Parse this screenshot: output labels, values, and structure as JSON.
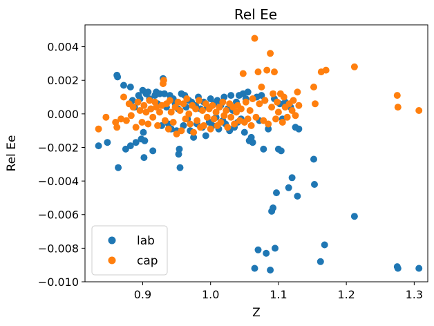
{
  "chart_data": {
    "type": "scatter",
    "title": "Rel Ee",
    "xlabel": "Z",
    "ylabel": "Rel Ee",
    "xlim": [
      0.815,
      1.32
    ],
    "ylim": [
      -0.01,
      0.0053
    ],
    "xticks": [
      {
        "value": 0.9,
        "label": "0.9"
      },
      {
        "value": 1.0,
        "label": "1.0"
      },
      {
        "value": 1.1,
        "label": "1.1"
      },
      {
        "value": 1.2,
        "label": "1.2"
      },
      {
        "value": 1.3,
        "label": "1.3"
      }
    ],
    "yticks": [
      {
        "value": 0.004,
        "label": "0.004"
      },
      {
        "value": 0.002,
        "label": "0.002"
      },
      {
        "value": 0.0,
        "label": "0.000"
      },
      {
        "value": -0.002,
        "label": "−0.002"
      },
      {
        "value": -0.004,
        "label": "−0.004"
      },
      {
        "value": -0.006,
        "label": "−0.006"
      },
      {
        "value": -0.008,
        "label": "−0.008"
      },
      {
        "value": -0.01,
        "label": "−0.010"
      }
    ],
    "grid": false,
    "legend_position": "lower-left",
    "series": [
      {
        "name": "lab",
        "color": "#1f77b4",
        "points": [
          [
            0.835,
            -0.0019
          ],
          [
            0.848,
            -0.0017
          ],
          [
            0.862,
            0.0023
          ],
          [
            0.863,
            0.0022
          ],
          [
            0.864,
            -0.0032
          ],
          [
            0.872,
            0.0017
          ],
          [
            0.875,
            -0.0021
          ],
          [
            0.882,
            0.0016
          ],
          [
            0.882,
            -0.0019
          ],
          [
            0.885,
            0.0008
          ],
          [
            0.888,
            0.0004
          ],
          [
            0.89,
            -0.0017
          ],
          [
            0.894,
            0.0011
          ],
          [
            0.896,
            0.0009
          ],
          [
            0.898,
            -0.0015
          ],
          [
            0.9,
            0.0014
          ],
          [
            0.901,
            -0.0011
          ],
          [
            0.902,
            -0.0026
          ],
          [
            0.903,
            -0.0016
          ],
          [
            0.905,
            0.0012
          ],
          [
            0.908,
            0.0013
          ],
          [
            0.91,
            0.0009
          ],
          [
            0.912,
            0.0003
          ],
          [
            0.915,
            -0.0022
          ],
          [
            0.918,
            0.0011
          ],
          [
            0.92,
            0.0013
          ],
          [
            0.922,
            0.0006
          ],
          [
            0.925,
            0.0012
          ],
          [
            0.928,
            -0.0007
          ],
          [
            0.93,
            0.0021
          ],
          [
            0.932,
            0.0012
          ],
          [
            0.935,
            0.0004
          ],
          [
            0.938,
            -0.0006
          ],
          [
            0.94,
            0.0011
          ],
          [
            0.942,
            -0.0009
          ],
          [
            0.945,
            0.0009
          ],
          [
            0.948,
            0.0006
          ],
          [
            0.95,
            -0.001
          ],
          [
            0.952,
            0.0003
          ],
          [
            0.953,
            -0.0024
          ],
          [
            0.954,
            -0.0021
          ],
          [
            0.955,
            -0.0032
          ],
          [
            0.957,
            0.0012
          ],
          [
            0.96,
            -0.0007
          ],
          [
            0.962,
            0.0011
          ],
          [
            0.964,
            0.0004
          ],
          [
            0.966,
            -0.0003
          ],
          [
            0.968,
            0.0008
          ],
          [
            0.97,
            -0.001
          ],
          [
            0.972,
            0.0007
          ],
          [
            0.975,
            -0.0014
          ],
          [
            0.978,
            0.0005
          ],
          [
            0.98,
            -0.0006
          ],
          [
            0.982,
            0.001
          ],
          [
            0.985,
            0.0003
          ],
          [
            0.988,
            -0.0008
          ],
          [
            0.99,
            0.0007
          ],
          [
            0.993,
            -0.0013
          ],
          [
            0.995,
            0.0004
          ],
          [
            0.998,
            -0.0005
          ],
          [
            1.0,
            0.0009
          ],
          [
            1.003,
            -0.0007
          ],
          [
            1.005,
            0.0006
          ],
          [
            1.008,
            -0.0002
          ],
          [
            1.01,
            0.0008
          ],
          [
            1.012,
            -0.0009
          ],
          [
            1.015,
            0.0005
          ],
          [
            1.018,
            -0.0004
          ],
          [
            1.02,
            0.001
          ],
          [
            1.022,
            -0.0006
          ],
          [
            1.025,
            0.0003
          ],
          [
            1.028,
            -0.001
          ],
          [
            1.03,
            0.0011
          ],
          [
            1.033,
            0.0002
          ],
          [
            1.035,
            -0.0008
          ],
          [
            1.038,
            0.0007
          ],
          [
            1.04,
            -0.0005
          ],
          [
            1.042,
            0.0011
          ],
          [
            1.045,
            -0.0003
          ],
          [
            1.048,
            0.0012
          ],
          [
            1.05,
            -0.0011
          ],
          [
            1.052,
            0.0009
          ],
          [
            1.055,
            0.0013
          ],
          [
            1.057,
            -0.0016
          ],
          [
            1.06,
            -0.0014
          ],
          [
            1.062,
            -0.0017
          ],
          [
            1.065,
            -0.0092
          ],
          [
            1.068,
            0.001
          ],
          [
            1.07,
            -0.0081
          ],
          [
            1.072,
            -0.0004
          ],
          [
            1.075,
            0.0011
          ],
          [
            1.078,
            -0.0021
          ],
          [
            1.08,
            0.0008
          ],
          [
            1.082,
            -0.0083
          ],
          [
            1.085,
            -0.0009
          ],
          [
            1.088,
            -0.0093
          ],
          [
            1.09,
            -0.0058
          ],
          [
            1.092,
            -0.0056
          ],
          [
            1.094,
            0.0009
          ],
          [
            1.095,
            -0.008
          ],
          [
            1.097,
            -0.0047
          ],
          [
            1.1,
            -0.0021
          ],
          [
            1.102,
            0.0006
          ],
          [
            1.104,
            -0.0022
          ],
          [
            1.106,
            -0.0003
          ],
          [
            1.11,
            0.0007
          ],
          [
            1.115,
            -0.0044
          ],
          [
            1.118,
            0.0004
          ],
          [
            1.12,
            -0.0038
          ],
          [
            1.125,
            -0.0008
          ],
          [
            1.128,
            -0.0049
          ],
          [
            1.13,
            -0.0009
          ],
          [
            1.152,
            -0.0027
          ],
          [
            1.153,
            -0.0042
          ],
          [
            1.162,
            -0.0088
          ],
          [
            1.168,
            -0.0078
          ],
          [
            1.212,
            -0.0061
          ],
          [
            1.275,
            -0.0091
          ],
          [
            1.276,
            -0.0092
          ],
          [
            1.307,
            -0.0092
          ]
        ]
      },
      {
        "name": "cap",
        "color": "#ff7f0e",
        "points": [
          [
            0.835,
            -0.0009
          ],
          [
            0.846,
            -0.0002
          ],
          [
            0.86,
            -0.0005
          ],
          [
            0.862,
            -0.0008
          ],
          [
            0.868,
            -0.0003
          ],
          [
            0.872,
            0.001
          ],
          [
            0.876,
            -0.0004
          ],
          [
            0.88,
            0.0006
          ],
          [
            0.883,
            -0.0001
          ],
          [
            0.886,
            0.0004
          ],
          [
            0.89,
            -0.0008
          ],
          [
            0.893,
            0.0007
          ],
          [
            0.896,
            0.0002
          ],
          [
            0.899,
            -0.0005
          ],
          [
            0.902,
            0.0005
          ],
          [
            0.905,
            0.0001
          ],
          [
            0.908,
            -0.0006
          ],
          [
            0.91,
            0.0008
          ],
          [
            0.912,
            0.0003
          ],
          [
            0.915,
            -0.0002
          ],
          [
            0.918,
            0.0007
          ],
          [
            0.92,
            0.0004
          ],
          [
            0.922,
            -0.0007
          ],
          [
            0.925,
            0.0001
          ],
          [
            0.928,
            0.0005
          ],
          [
            0.93,
            0.0018
          ],
          [
            0.931,
            0.002
          ],
          [
            0.933,
            -0.0004
          ],
          [
            0.935,
            0.0006
          ],
          [
            0.938,
            -0.0009
          ],
          [
            0.94,
            0.0008
          ],
          [
            0.942,
            0.0001
          ],
          [
            0.945,
            -0.0005
          ],
          [
            0.948,
            0.0004
          ],
          [
            0.95,
            -0.0012
          ],
          [
            0.952,
            0.0007
          ],
          [
            0.955,
            0.0002
          ],
          [
            0.957,
            -0.001
          ],
          [
            0.96,
            0.0006
          ],
          [
            0.963,
            -0.0003
          ],
          [
            0.965,
            0.0009
          ],
          [
            0.968,
            0.0
          ],
          [
            0.97,
            -0.0006
          ],
          [
            0.973,
            0.0005
          ],
          [
            0.975,
            -0.0011
          ],
          [
            0.978,
            0.0003
          ],
          [
            0.98,
            -0.0004
          ],
          [
            0.983,
            0.0008
          ],
          [
            0.985,
            -0.0008
          ],
          [
            0.988,
            0.0002
          ],
          [
            0.99,
            -0.0007
          ],
          [
            0.993,
            0.0006
          ],
          [
            0.995,
            -0.0002
          ],
          [
            0.998,
            0.0003
          ],
          [
            1.0,
            -0.0009
          ],
          [
            1.003,
            0.0005
          ],
          [
            1.005,
            -0.0003
          ],
          [
            1.008,
            0.0001
          ],
          [
            1.01,
            -0.0007
          ],
          [
            1.013,
            0.0004
          ],
          [
            1.015,
            -0.0005
          ],
          [
            1.018,
            0.0007
          ],
          [
            1.02,
            -0.0001
          ],
          [
            1.023,
            0.0002
          ],
          [
            1.025,
            -0.0008
          ],
          [
            1.028,
            0.0006
          ],
          [
            1.03,
            -0.0002
          ],
          [
            1.033,
            0.0004
          ],
          [
            1.035,
            -0.0006
          ],
          [
            1.038,
            0.0001
          ],
          [
            1.04,
            0.0005
          ],
          [
            1.043,
            -0.0004
          ],
          [
            1.045,
            0.0003
          ],
          [
            1.048,
            0.0024
          ],
          [
            1.05,
            -0.0005
          ],
          [
            1.052,
            0.0007
          ],
          [
            1.055,
            -0.0003
          ],
          [
            1.058,
            0.0002
          ],
          [
            1.06,
            -0.0007
          ],
          [
            1.062,
            0.0009
          ],
          [
            1.065,
            0.0045
          ],
          [
            1.067,
            -0.0002
          ],
          [
            1.07,
            0.0025
          ],
          [
            1.072,
            0.0006
          ],
          [
            1.075,
            0.0016
          ],
          [
            1.078,
            -0.0004
          ],
          [
            1.08,
            0.0008
          ],
          [
            1.083,
            0.0026
          ],
          [
            1.085,
            -0.0006
          ],
          [
            1.088,
            0.0036
          ],
          [
            1.09,
            0.0004
          ],
          [
            1.092,
            0.0012
          ],
          [
            1.094,
            0.0025
          ],
          [
            1.096,
            -0.0003
          ],
          [
            1.098,
            0.0007
          ],
          [
            1.1,
            0.0001
          ],
          [
            1.103,
            0.0012
          ],
          [
            1.106,
            -0.0005
          ],
          [
            1.108,
            0.001
          ],
          [
            1.11,
            0.0004
          ],
          [
            1.113,
            -0.0002
          ],
          [
            1.116,
            0.0006
          ],
          [
            1.12,
            0.0002
          ],
          [
            1.122,
            0.0008
          ],
          [
            1.125,
            -0.0001
          ],
          [
            1.128,
            0.0013
          ],
          [
            1.13,
            0.0005
          ],
          [
            1.152,
            0.0016
          ],
          [
            1.154,
            0.0006
          ],
          [
            1.163,
            0.0025
          ],
          [
            1.17,
            0.0026
          ],
          [
            1.212,
            0.0028
          ],
          [
            1.275,
            0.0011
          ],
          [
            1.276,
            0.0004
          ],
          [
            1.307,
            0.0002
          ]
        ]
      }
    ]
  }
}
